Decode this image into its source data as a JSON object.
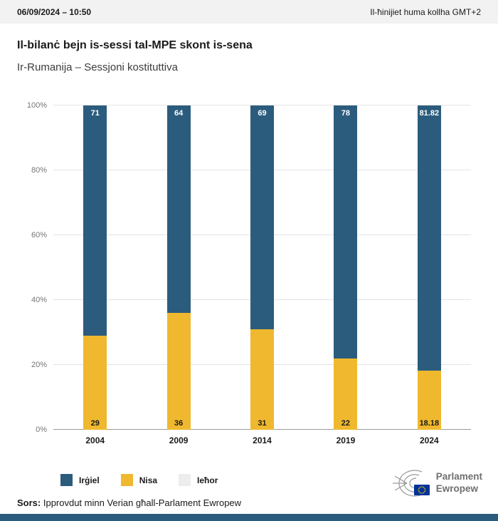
{
  "header": {
    "datetime": "06/09/2024 – 10:50",
    "timezone_note": "Il-ħinijiet huma kollha GMT+2"
  },
  "title": "Il-bilanċ bejn is-sessi tal-MPE skont is-sena",
  "subtitle": "Ir-Rumanija – Sessjoni kostituttiva",
  "chart_data": {
    "type": "bar",
    "stacked": true,
    "title": "Il-bilanċ bejn is-sessi tal-MPE skont is-sena",
    "subtitle": "Ir-Rumanija – Sessjoni kostituttiva",
    "categories": [
      "2004",
      "2009",
      "2014",
      "2019",
      "2024"
    ],
    "series": [
      {
        "name": "Irġiel",
        "color": "#2b5c7d",
        "values": [
          71,
          64,
          69,
          78,
          81.82
        ],
        "labels": [
          "71",
          "64",
          "69",
          "78",
          "81.82"
        ]
      },
      {
        "name": "Nisa",
        "color": "#efb82e",
        "values": [
          29,
          36,
          31,
          22,
          18.18
        ],
        "labels": [
          "29",
          "36",
          "31",
          "22",
          "18.18"
        ]
      },
      {
        "name": "Ieħor",
        "color": "#ededed",
        "values": [
          0,
          0,
          0,
          0,
          0
        ],
        "labels": [
          "",
          "",
          "",
          "",
          ""
        ]
      }
    ],
    "ylim": [
      0,
      100
    ],
    "yticks": [
      "0%",
      "20%",
      "40%",
      "60%",
      "80%",
      "100%"
    ],
    "grid": true,
    "legend_position": "bottom"
  },
  "legend": [
    {
      "label": "Irġiel",
      "color": "#2b5c7d"
    },
    {
      "label": "Nisa",
      "color": "#efb82e"
    },
    {
      "label": "Ieħor",
      "color": "#ededed"
    }
  ],
  "logo": {
    "line1": "Parlament",
    "line2": "Ewropew"
  },
  "source": {
    "prefix": "Sors:",
    "text": " Ipprovdut minn Verian għall-Parlament Ewropew"
  },
  "colors": {
    "men": "#2b5c7d",
    "women": "#efb82e",
    "other": "#ededed",
    "topbar_bg": "#f2f2f2",
    "footer_bar": "#2b5c7d",
    "eu_flag_blue": "#003399",
    "eu_stars_yellow": "#ffcc00"
  }
}
